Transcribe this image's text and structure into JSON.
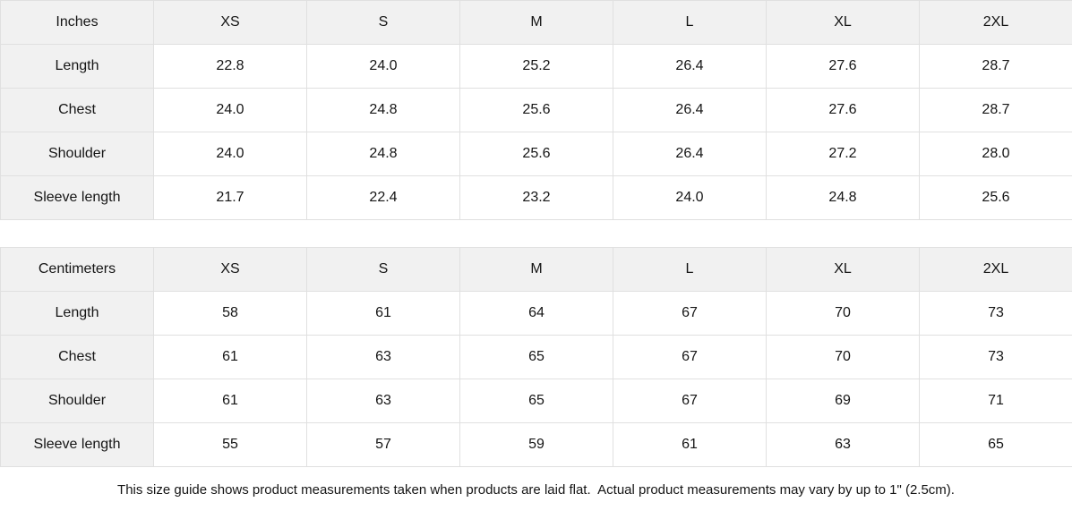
{
  "tables": [
    {
      "id": "inches",
      "unit_label": "Inches",
      "size_headers": [
        "XS",
        "S",
        "M",
        "L",
        "XL",
        "2XL"
      ],
      "rows": [
        {
          "label": "Length",
          "values": [
            "22.8",
            "24.0",
            "25.2",
            "26.4",
            "27.6",
            "28.7"
          ]
        },
        {
          "label": "Chest",
          "values": [
            "24.0",
            "24.8",
            "25.6",
            "26.4",
            "27.6",
            "28.7"
          ]
        },
        {
          "label": "Shoulder",
          "values": [
            "24.0",
            "24.8",
            "25.6",
            "26.4",
            "27.2",
            "28.0"
          ]
        },
        {
          "label": "Sleeve length",
          "values": [
            "21.7",
            "22.4",
            "23.2",
            "24.0",
            "24.8",
            "25.6"
          ]
        }
      ]
    },
    {
      "id": "centimeters",
      "unit_label": "Centimeters",
      "size_headers": [
        "XS",
        "S",
        "M",
        "L",
        "XL",
        "2XL"
      ],
      "rows": [
        {
          "label": "Length",
          "values": [
            "58",
            "61",
            "64",
            "67",
            "70",
            "73"
          ]
        },
        {
          "label": "Chest",
          "values": [
            "61",
            "63",
            "65",
            "67",
            "70",
            "73"
          ]
        },
        {
          "label": "Shoulder",
          "values": [
            "61",
            "63",
            "65",
            "67",
            "69",
            "71"
          ]
        },
        {
          "label": "Sleeve length",
          "values": [
            "55",
            "57",
            "59",
            "61",
            "63",
            "65"
          ]
        }
      ]
    }
  ],
  "footer": {
    "note": "This size guide shows product measurements taken when products are laid flat.  Actual product measurements may vary by up to 1\" (2.5cm)."
  },
  "colors": {
    "header_bg": "#f1f1f1",
    "label_bg": "#f1f1f1",
    "border": "#e0e0e0",
    "text": "#151515",
    "background": "#ffffff"
  }
}
